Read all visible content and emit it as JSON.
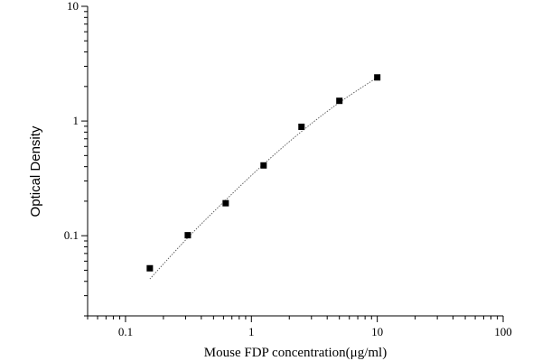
{
  "chart_data": {
    "type": "scatter",
    "xlabel": "Mouse FDP concentration(μg/ml)",
    "ylabel": "Optical Density",
    "x_scale": "log",
    "y_scale": "log",
    "xlim": [
      0.05,
      100
    ],
    "ylim": [
      0.02,
      10
    ],
    "x_ticks": [
      {
        "value": 0.1,
        "label": "0.1"
      },
      {
        "value": 1,
        "label": "1"
      },
      {
        "value": 10,
        "label": "10"
      },
      {
        "value": 100,
        "label": "100"
      }
    ],
    "y_ticks": [
      {
        "value": 0.1,
        "label": "0.1"
      },
      {
        "value": 1,
        "label": "1"
      },
      {
        "value": 10,
        "label": "10"
      }
    ],
    "grid": false,
    "series": [
      {
        "points": [
          {
            "x": 0.156,
            "y": 0.052
          },
          {
            "x": 0.3125,
            "y": 0.101
          },
          {
            "x": 0.625,
            "y": 0.192
          },
          {
            "x": 1.25,
            "y": 0.41
          },
          {
            "x": 2.5,
            "y": 0.89
          },
          {
            "x": 5,
            "y": 1.5
          },
          {
            "x": 10,
            "y": 2.4
          }
        ]
      }
    ],
    "fit": {
      "style": "dotted",
      "points": [
        {
          "x": 0.156,
          "y": 0.042
        },
        {
          "x": 0.3125,
          "y": 0.096
        },
        {
          "x": 0.625,
          "y": 0.205
        },
        {
          "x": 1.25,
          "y": 0.42
        },
        {
          "x": 2.5,
          "y": 0.81
        },
        {
          "x": 5,
          "y": 1.45
        },
        {
          "x": 10,
          "y": 2.4
        }
      ]
    }
  }
}
